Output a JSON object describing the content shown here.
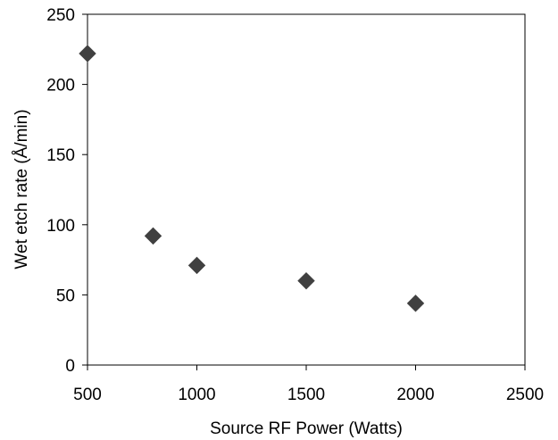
{
  "chart_data": {
    "type": "scatter",
    "title": "",
    "xlabel": "Source RF Power (Watts)",
    "ylabel": "Wet etch rate (Å/min)",
    "xlim": [
      500,
      2500
    ],
    "ylim": [
      0,
      250
    ],
    "xticks": [
      "500",
      "1000",
      "1500",
      "2000",
      "2500"
    ],
    "yticks": [
      "0",
      "50",
      "100",
      "150",
      "200",
      "250"
    ],
    "grid": false,
    "legend": "none",
    "marker": "diamond",
    "marker_color": "#404040",
    "series": [
      {
        "x": [
          500,
          800,
          1000,
          1500,
          2000
        ],
        "y": [
          222,
          92,
          71,
          60,
          44
        ]
      }
    ]
  }
}
